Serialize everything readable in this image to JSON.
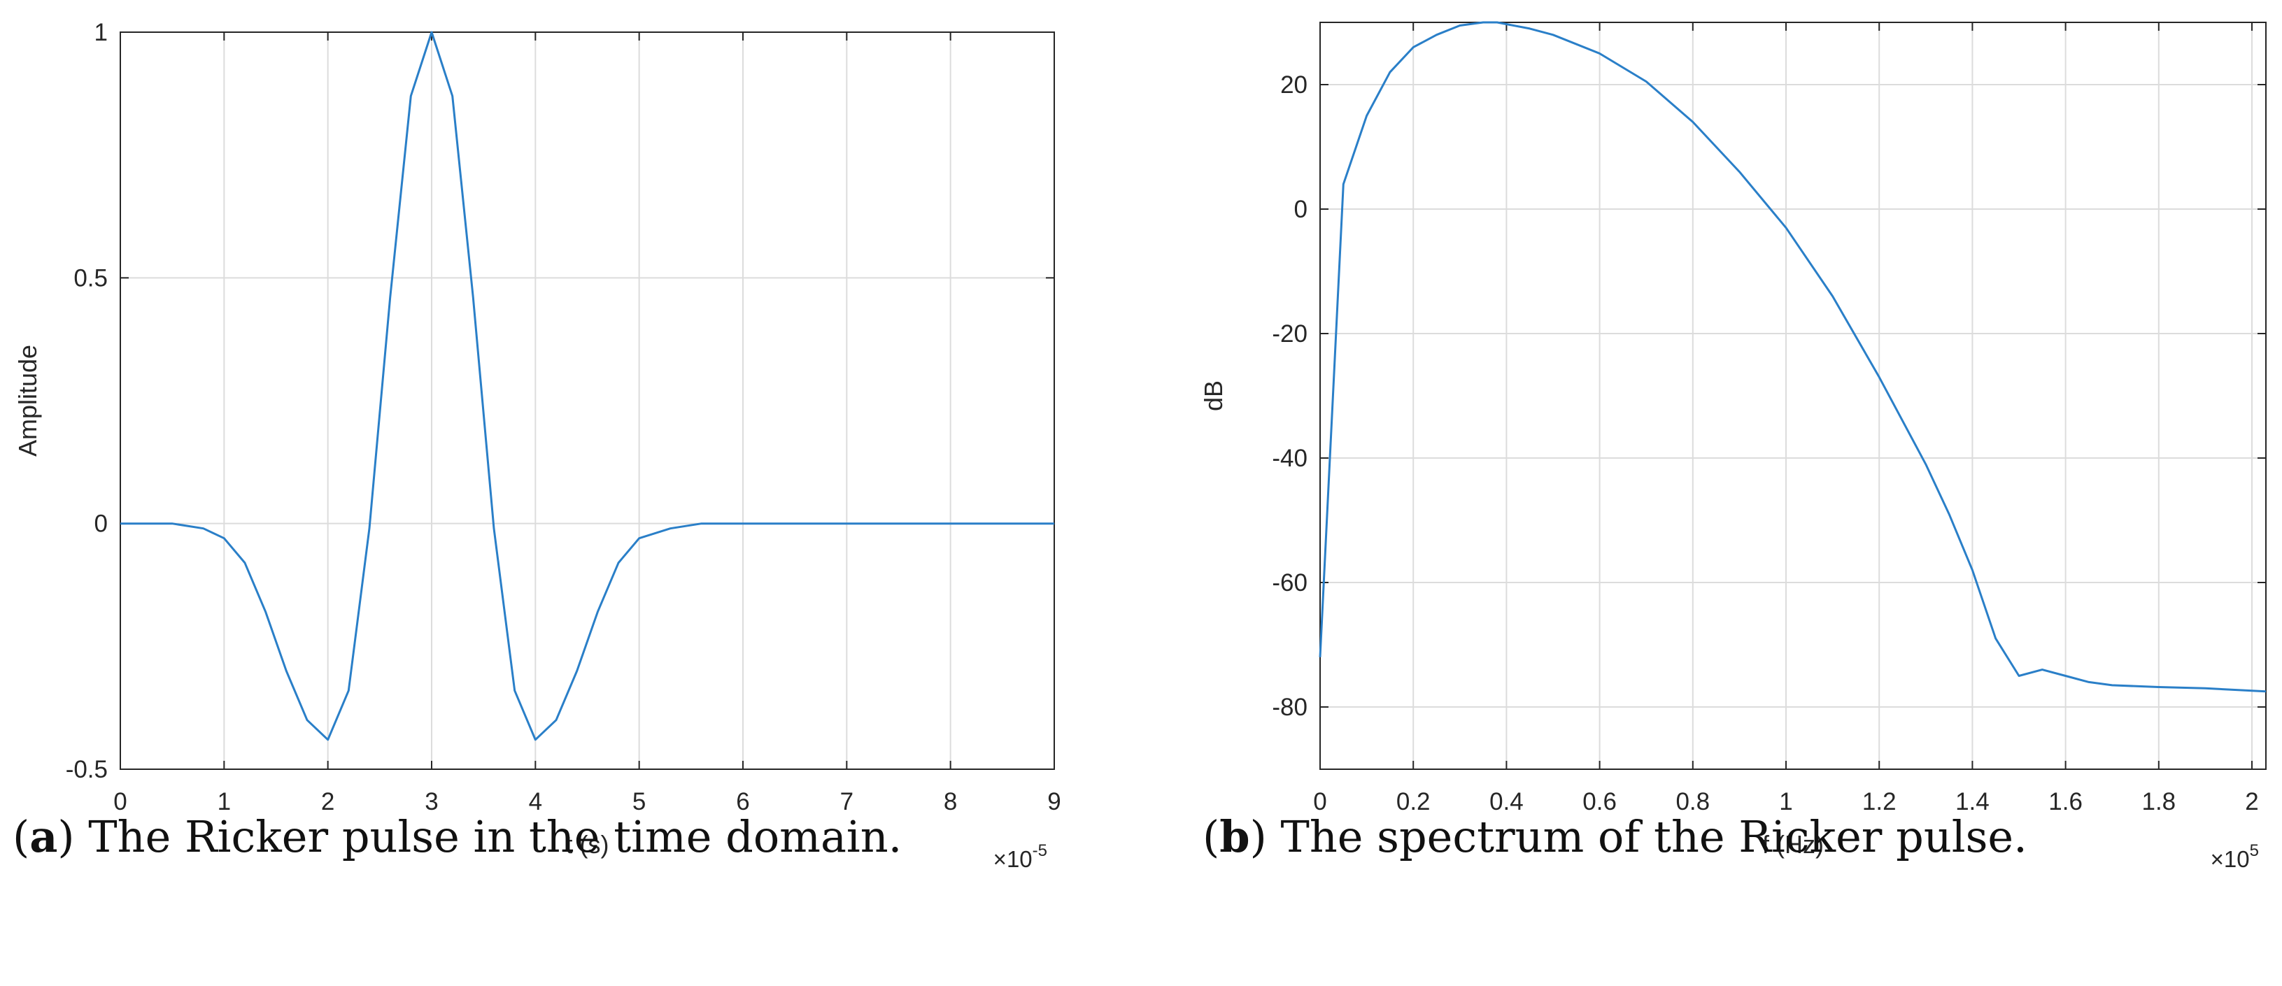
{
  "chart_data": [
    {
      "type": "line",
      "xlabel": "t (s)",
      "ylabel": "Amplitude",
      "x_multiplier_label": "×10",
      "x_multiplier_exp": "-5",
      "xlim": [
        0,
        9
      ],
      "ylim": [
        -0.5,
        1
      ],
      "x_ticks": [
        0,
        1,
        2,
        3,
        4,
        5,
        6,
        7,
        8,
        9
      ],
      "y_ticks": [
        -0.5,
        0,
        0.5,
        1
      ],
      "x_tick_labels": [
        "0",
        "1",
        "2",
        "3",
        "4",
        "5",
        "6",
        "7",
        "8",
        "9"
      ],
      "y_tick_labels": [
        "-0.5",
        "0",
        "0.5",
        "1"
      ],
      "grid": true,
      "line_color": "#2a7fc8",
      "series": [
        {
          "x": [
            0,
            0.5,
            0.8,
            1.0,
            1.2,
            1.4,
            1.6,
            1.8,
            2.0,
            2.2,
            2.4,
            2.6,
            2.8,
            3.0,
            3.2,
            3.4,
            3.6,
            3.8,
            4.0,
            4.2,
            4.4,
            4.6,
            4.8,
            5.0,
            5.3,
            5.6,
            6.0,
            9.0
          ],
          "y": [
            0,
            0,
            -0.01,
            -0.03,
            -0.08,
            -0.18,
            -0.3,
            -0.4,
            -0.44,
            -0.34,
            -0.01,
            0.46,
            0.87,
            1.0,
            0.87,
            0.46,
            -0.01,
            -0.34,
            -0.44,
            -0.4,
            -0.3,
            -0.18,
            -0.08,
            -0.03,
            -0.01,
            0,
            0,
            0
          ]
        }
      ],
      "caption_letter": "a",
      "caption_text": " The Ricker pulse in the time domain."
    },
    {
      "type": "line",
      "xlabel": "f (Hz)",
      "ylabel": "dB",
      "x_multiplier_label": "×10",
      "x_multiplier_exp": "5",
      "xlim": [
        0,
        2.03
      ],
      "ylim": [
        -90,
        30
      ],
      "x_ticks": [
        0,
        0.2,
        0.4,
        0.6,
        0.8,
        1.0,
        1.2,
        1.4,
        1.6,
        1.8,
        2.0
      ],
      "y_ticks": [
        -80,
        -60,
        -40,
        -20,
        0,
        20
      ],
      "x_tick_labels": [
        "0",
        "0.2",
        "0.4",
        "0.6",
        "0.8",
        "1",
        "1.2",
        "1.4",
        "1.6",
        "1.8",
        "2"
      ],
      "y_tick_labels": [
        "-80",
        "-60",
        "-40",
        "-20",
        "0",
        "20"
      ],
      "grid": true,
      "line_color": "#2a7fc8",
      "series": [
        {
          "x": [
            0,
            0.05,
            0.1,
            0.15,
            0.2,
            0.25,
            0.3,
            0.35,
            0.38,
            0.45,
            0.5,
            0.6,
            0.7,
            0.8,
            0.9,
            1.0,
            1.1,
            1.2,
            1.3,
            1.35,
            1.4,
            1.45,
            1.5,
            1.55,
            1.6,
            1.65,
            1.7,
            1.8,
            1.9,
            2.03
          ],
          "y": [
            -72,
            4,
            15,
            22,
            26,
            28,
            29.5,
            30,
            30,
            29,
            28,
            25,
            20.5,
            14,
            6,
            -3,
            -14,
            -27,
            -41,
            -49,
            -58,
            -69,
            -75,
            -74,
            -75,
            -76,
            -76.5,
            -76.8,
            -77,
            -77.5
          ]
        }
      ],
      "caption_letter": "b",
      "caption_text": " The spectrum of the Ricker pulse."
    }
  ]
}
